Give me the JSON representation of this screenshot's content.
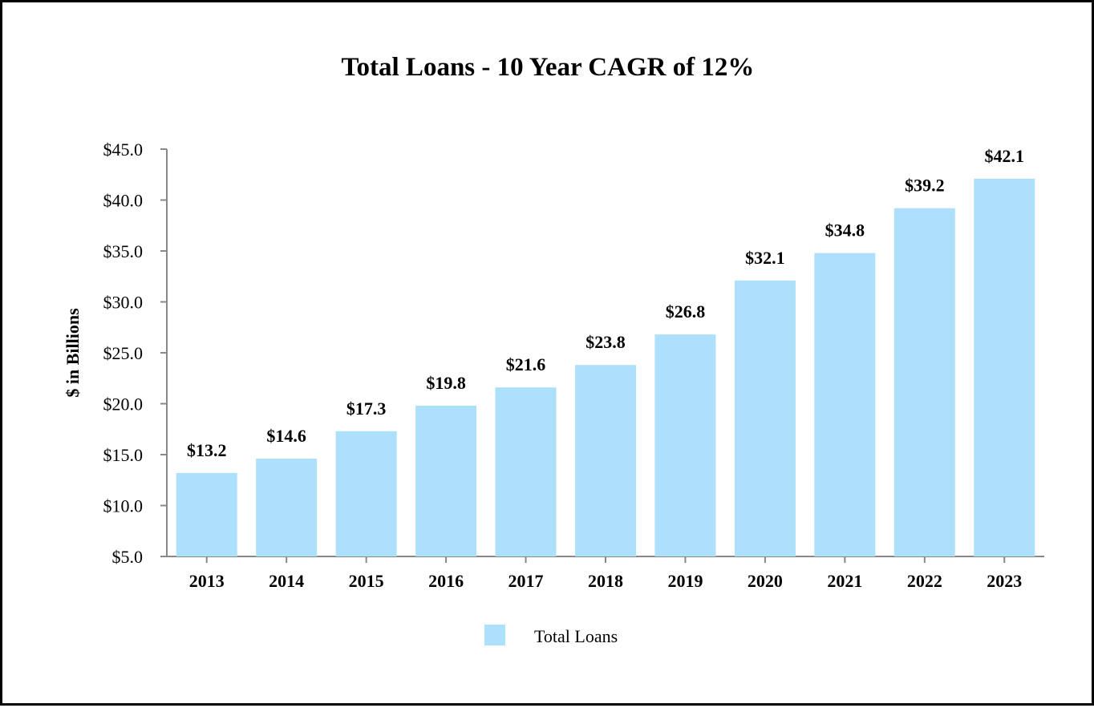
{
  "chart_data": {
    "type": "bar",
    "title": "Total Loans - 10 Year CAGR of 12%",
    "ylabel": "$ in Billions",
    "xlabel": "",
    "categories": [
      "2013",
      "2014",
      "2015",
      "2016",
      "2017",
      "2018",
      "2019",
      "2020",
      "2021",
      "2022",
      "2023"
    ],
    "series": [
      {
        "name": "Total Loans",
        "values": [
          13.2,
          14.6,
          17.3,
          19.8,
          21.6,
          23.8,
          26.8,
          32.1,
          34.8,
          39.2,
          42.1
        ],
        "labels": [
          "$13.2",
          "$14.6",
          "$17.3",
          "$19.8",
          "$21.6",
          "$23.8",
          "$26.8",
          "$32.1",
          "$34.8",
          "$39.2",
          "$42.1"
        ],
        "color": "#ADE0FA"
      }
    ],
    "ylim": [
      5,
      45
    ],
    "yticks": [
      5,
      10,
      15,
      20,
      25,
      30,
      35,
      40,
      45
    ],
    "ytick_labels": [
      "$5.0",
      "$10.0",
      "$15.0",
      "$20.0",
      "$25.0",
      "$30.0",
      "$35.0",
      "$40.0",
      "$45.0"
    ],
    "legend_position": "bottom-center",
    "grid": false,
    "axis_color": "#888888"
  }
}
